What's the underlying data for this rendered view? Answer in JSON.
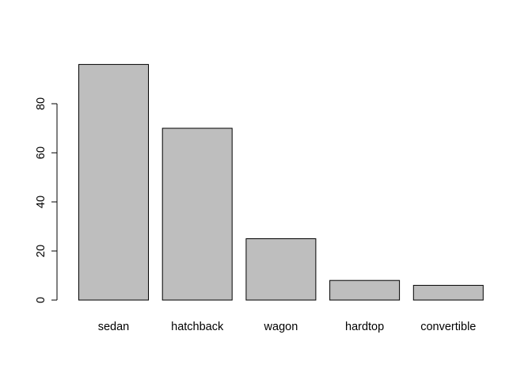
{
  "chart_data": {
    "type": "bar",
    "categories": [
      "sedan",
      "hatchback",
      "wagon",
      "hardtop",
      "convertible"
    ],
    "values": [
      96,
      70,
      25,
      8,
      6
    ],
    "title": "",
    "xlabel": "",
    "ylabel": "",
    "ylim": [
      0,
      96
    ],
    "yticks": [
      0,
      20,
      40,
      60,
      80
    ],
    "ytick_labels": [
      "0",
      "20",
      "40",
      "60",
      "80"
    ],
    "grid": false,
    "legend": "none",
    "bar_fill": "#bebebe",
    "bar_stroke": "#000000"
  }
}
